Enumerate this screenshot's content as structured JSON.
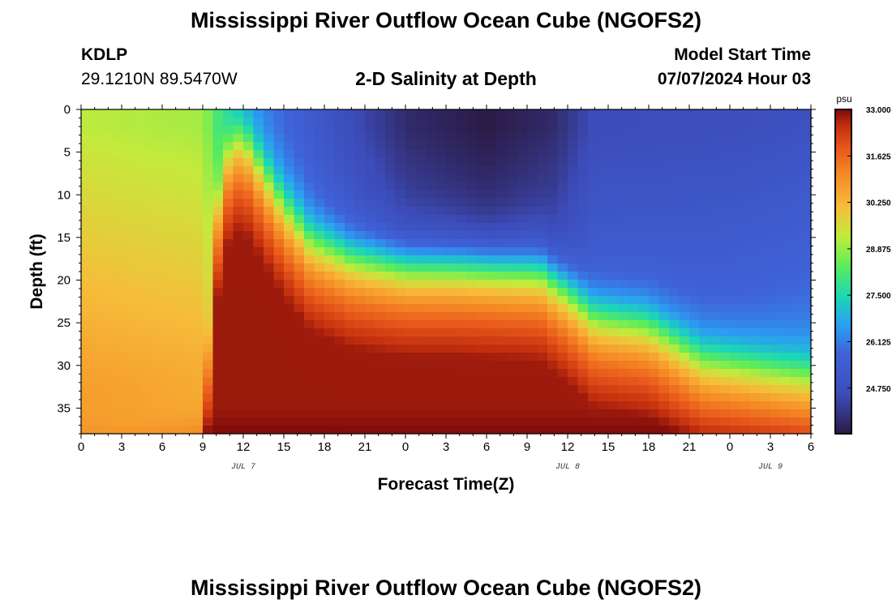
{
  "header": {
    "title": "Mississippi River Outflow Ocean Cube (NGOFS2)",
    "station": "KDLP",
    "coords": "29.1210N  89.5470W",
    "subtitle": "2-D Salinity at Depth",
    "start_label": "Model Start Time",
    "start_value": "07/07/2024 Hour 03"
  },
  "footer": {
    "title": "Mississippi River Outflow Ocean Cube (NGOFS2)"
  },
  "chart_data": {
    "type": "heatmap",
    "title": "2-D Salinity at Depth",
    "xlabel": "Forecast Time(Z)",
    "ylabel": "Depth (ft)",
    "x_range_hours": [
      0,
      54
    ],
    "x_ticks": [
      {
        "h": 0,
        "label": "0"
      },
      {
        "h": 3,
        "label": "3"
      },
      {
        "h": 6,
        "label": "6"
      },
      {
        "h": 9,
        "label": "9"
      },
      {
        "h": 12,
        "label": "12"
      },
      {
        "h": 15,
        "label": "15"
      },
      {
        "h": 18,
        "label": "18"
      },
      {
        "h": 21,
        "label": "21"
      },
      {
        "h": 24,
        "label": "0"
      },
      {
        "h": 27,
        "label": "3"
      },
      {
        "h": 30,
        "label": "6"
      },
      {
        "h": 33,
        "label": "9"
      },
      {
        "h": 36,
        "label": "12"
      },
      {
        "h": 39,
        "label": "15"
      },
      {
        "h": 42,
        "label": "18"
      },
      {
        "h": 45,
        "label": "21"
      },
      {
        "h": 48,
        "label": "0"
      },
      {
        "h": 51,
        "label": "3"
      },
      {
        "h": 54,
        "label": "6"
      }
    ],
    "date_labels": [
      {
        "h": 12,
        "label": "JUL 7"
      },
      {
        "h": 36,
        "label": "JUL 8"
      },
      {
        "h": 51,
        "label": "JUL 9"
      }
    ],
    "y_range_ft": [
      0,
      38
    ],
    "y_ticks": [
      0,
      5,
      10,
      15,
      20,
      25,
      30,
      35
    ],
    "colorbar": {
      "unit": "psu",
      "min": 23.4,
      "max": 33.0,
      "labels": [
        "33.000",
        "31.625",
        "30.250",
        "28.875",
        "27.500",
        "26.125",
        "24.750"
      ],
      "label_values": [
        33.0,
        31.625,
        30.25,
        28.875,
        27.5,
        26.125,
        24.75
      ]
    },
    "grid": {
      "hours_step": 0.75,
      "depth_step_ft": 0.95
    },
    "field": {
      "description": "Salinity (psu) vs forecast hour and depth",
      "interface_depth_ft": [
        [
          0,
          38
        ],
        [
          4,
          38
        ],
        [
          9,
          36
        ],
        [
          10,
          12
        ],
        [
          11,
          4
        ],
        [
          12,
          3
        ],
        [
          15,
          11
        ],
        [
          17,
          15
        ],
        [
          20,
          17
        ],
        [
          24,
          18
        ],
        [
          28,
          18
        ],
        [
          34,
          18.5
        ],
        [
          36,
          21
        ],
        [
          38,
          24
        ],
        [
          42,
          25
        ],
        [
          46,
          29
        ],
        [
          50,
          30
        ],
        [
          54,
          31
        ]
      ],
      "interface_half_width_ft": 2.0,
      "surface_min": [
        [
          0,
          29.2
        ],
        [
          9,
          29.0
        ],
        [
          12,
          26.5
        ],
        [
          16,
          25.6
        ],
        [
          20,
          24.6
        ],
        [
          24,
          23.8
        ],
        [
          30,
          23.4
        ],
        [
          35,
          23.8
        ],
        [
          38,
          24.6
        ],
        [
          48,
          24.7
        ],
        [
          54,
          24.9
        ]
      ],
      "lower_max": 32.8,
      "bottom_max": 33.0
    }
  }
}
